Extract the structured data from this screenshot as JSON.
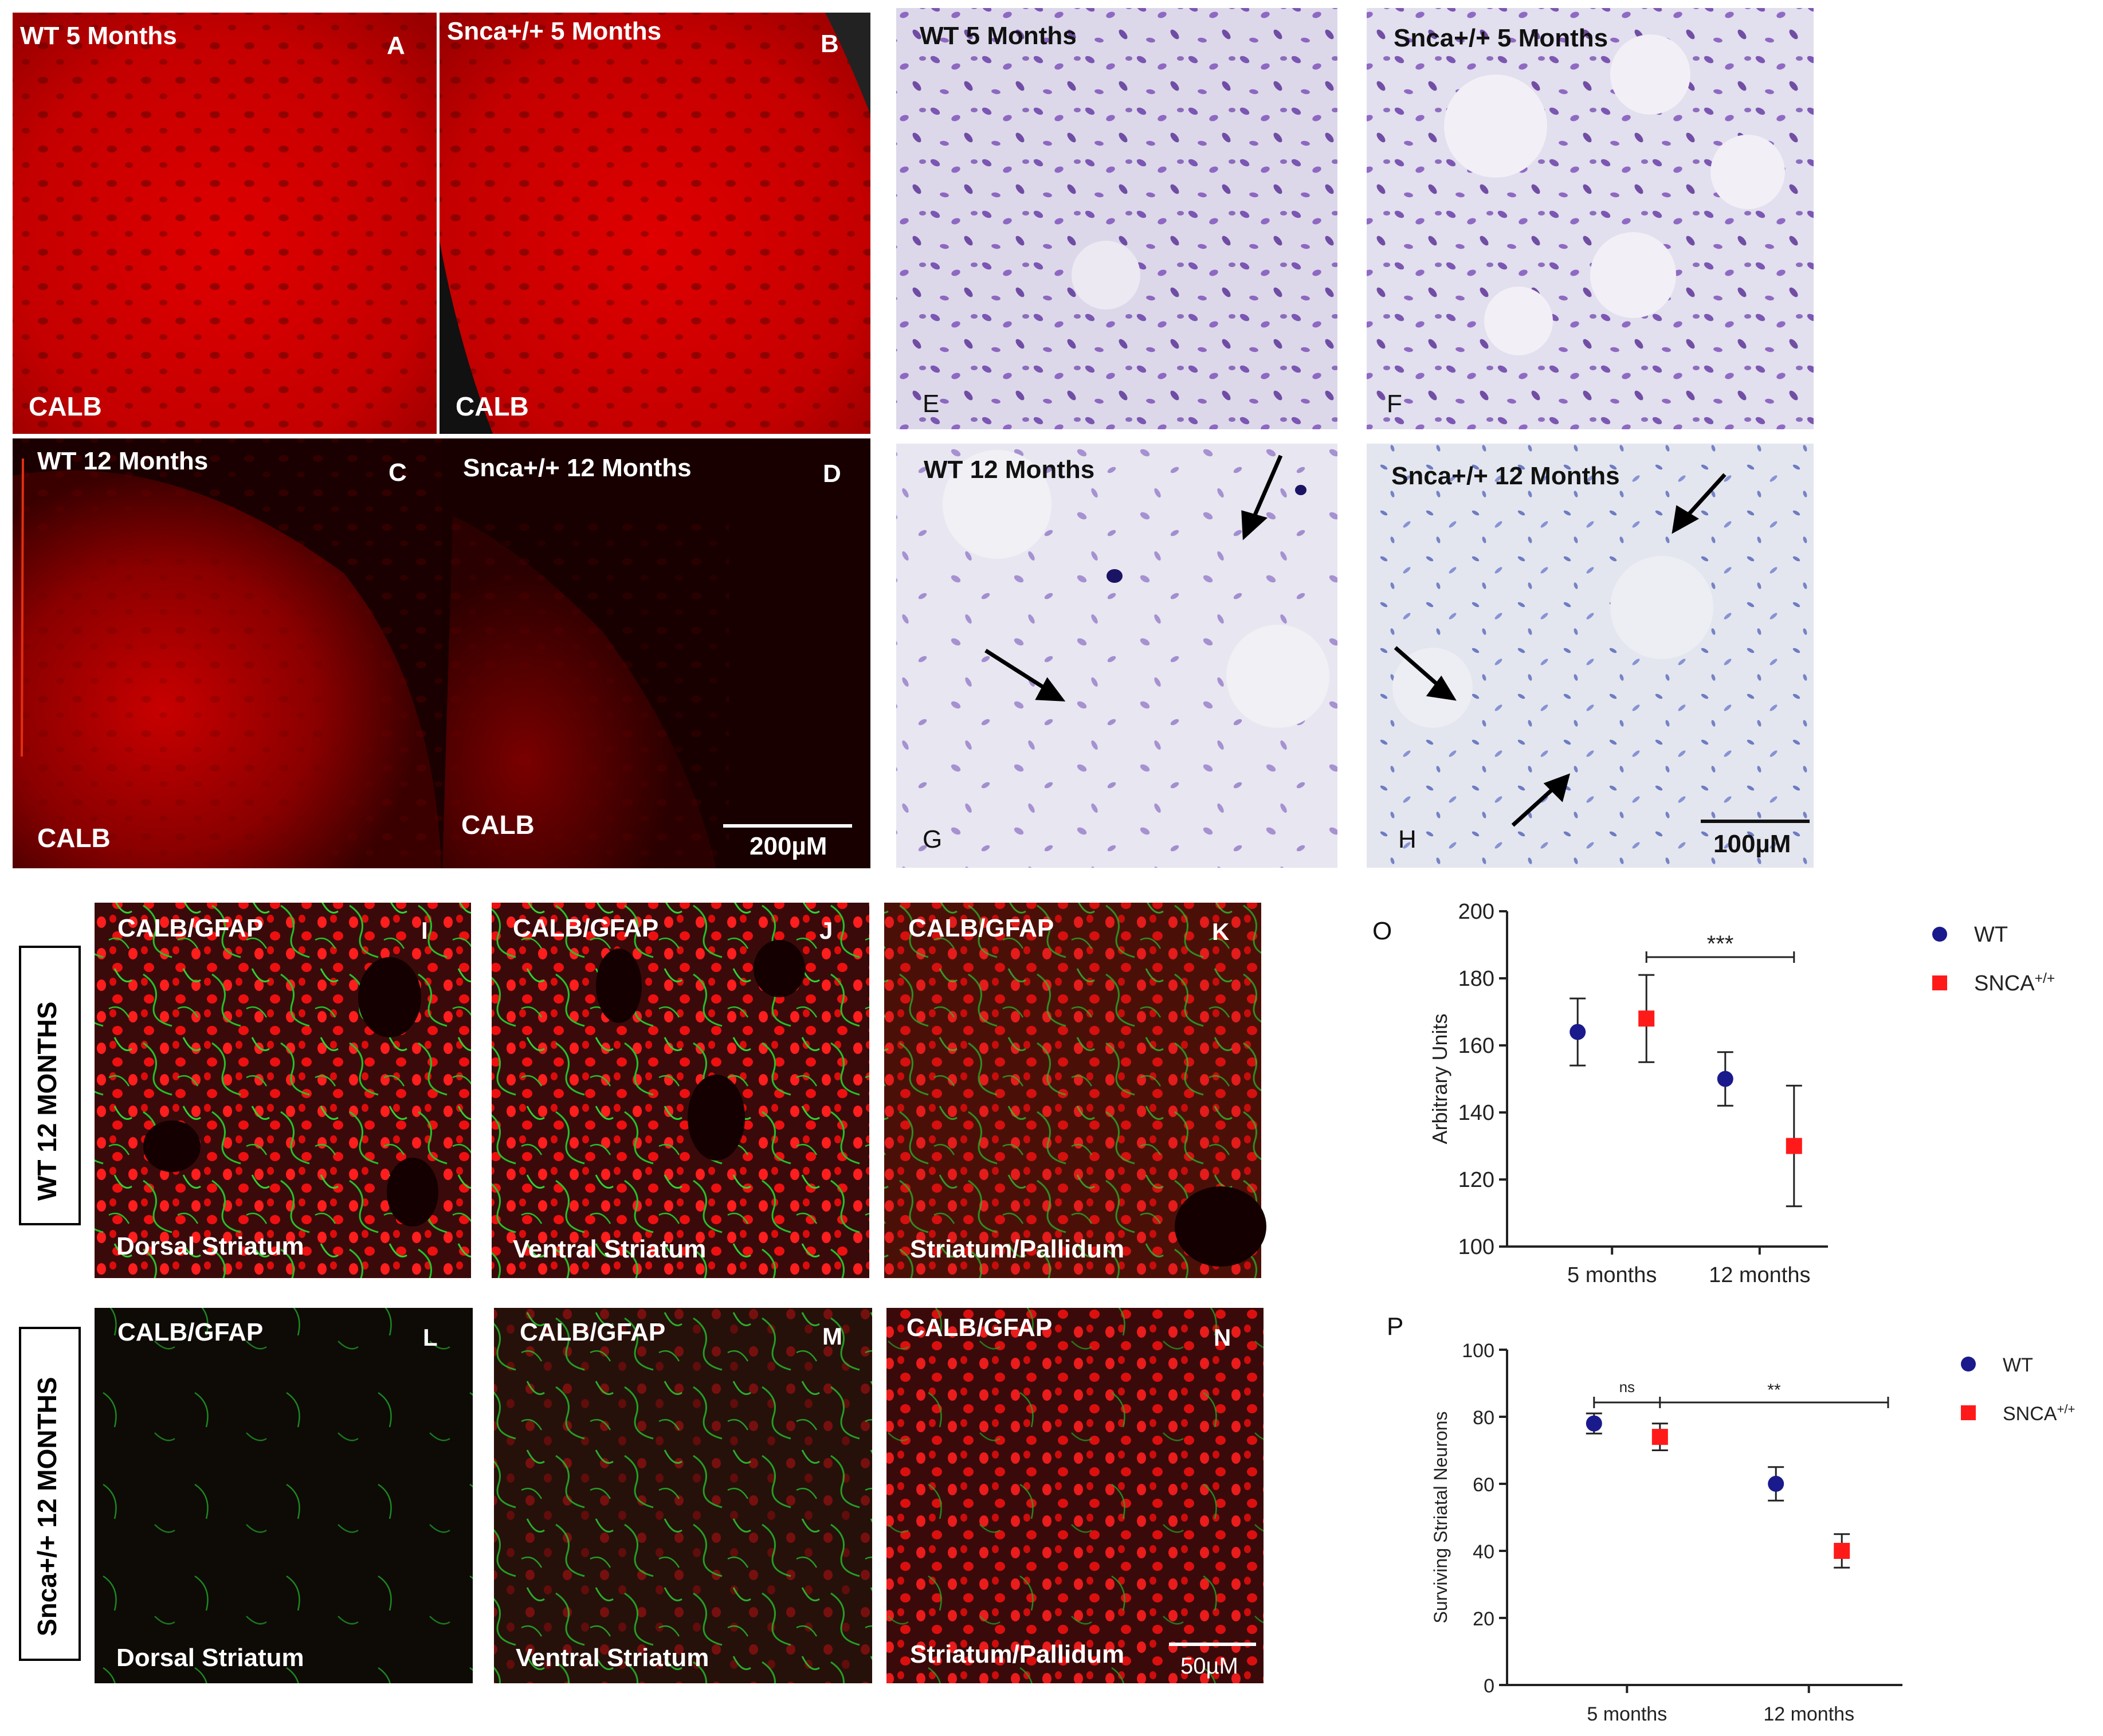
{
  "panels_fluor_top": {
    "A": {
      "title": "WT 5 Months",
      "letter": "A",
      "stain": "CALB"
    },
    "B": {
      "title": "Snca+/+ 5 Months",
      "letter": "B",
      "stain": "CALB"
    },
    "C": {
      "title": "WT 12 Months",
      "letter": "C",
      "stain": "CALB"
    },
    "D": {
      "title": "Snca+/+ 12 Months",
      "letter": "D",
      "stain": "CALB",
      "scale": "200µM"
    }
  },
  "panels_nissl": {
    "E": {
      "title": "WT 5 Months",
      "letter": "E"
    },
    "F": {
      "title": "Snca+/+ 5 Months",
      "letter": "F"
    },
    "G": {
      "title": "WT 12 Months",
      "letter": "G"
    },
    "H": {
      "title": "Snca+/+ 12 Months",
      "letter": "H",
      "scale": "100µM"
    }
  },
  "row_labels": {
    "wt": "WT 12 MONTHS",
    "snca": "Snca+/+ 12 MONTHS"
  },
  "panels_gfap": {
    "I": {
      "stain": "CALB/GFAP",
      "letter": "I",
      "region": "Dorsal  Striatum"
    },
    "J": {
      "stain": "CALB/GFAP",
      "letter": "J",
      "region": "Ventral Striatum"
    },
    "K": {
      "stain": "CALB/GFAP",
      "letter": "K",
      "region": "Striatum/Pallidum"
    },
    "L": {
      "stain": "CALB/GFAP",
      "letter": "L",
      "region": "Dorsal  Striatum"
    },
    "M": {
      "stain": "CALB/GFAP",
      "letter": "M",
      "region": "Ventral Striatum"
    },
    "N": {
      "stain": "CALB/GFAP",
      "letter": "N",
      "region": "Striatum/Pallidum",
      "scale": "50µM"
    }
  },
  "colors": {
    "wt": "#1a1a8c",
    "snca": "#ff1a1a",
    "calb_red": "#d40000",
    "gfap_green": "#22c22a",
    "nissl_bg": "#e6e3ef",
    "nissl_cell": "#6a3fa8"
  },
  "chart_data": [
    {
      "panel": "O",
      "type": "scatter",
      "categories": [
        "5 months",
        "12 months"
      ],
      "ylabel": "Arbitrary Units",
      "ylim": [
        100,
        200
      ],
      "yticks": [
        100,
        120,
        140,
        160,
        180,
        200
      ],
      "legend_position": "top-right",
      "series": [
        {
          "name": "WT",
          "values": [
            164,
            150
          ],
          "errors": [
            10,
            8
          ]
        },
        {
          "name": "SNCA+/+",
          "values": [
            168,
            130
          ],
          "errors": [
            13,
            18
          ]
        }
      ],
      "annotations": [
        {
          "text": "***",
          "from": "5 months",
          "to": "12 months"
        }
      ]
    },
    {
      "panel": "P",
      "type": "scatter",
      "categories": [
        "5 months",
        "12 months"
      ],
      "ylabel": "Surviving Striatal Neurons",
      "ylim": [
        0,
        100
      ],
      "yticks": [
        0,
        20,
        40,
        60,
        80,
        100
      ],
      "legend_position": "top-right",
      "series": [
        {
          "name": "WT",
          "values": [
            78,
            60
          ],
          "errors": [
            3,
            5
          ]
        },
        {
          "name": "SNCA+/+",
          "values": [
            74,
            40
          ],
          "errors": [
            4,
            5
          ]
        }
      ],
      "annotations": [
        {
          "text": "ns",
          "from": "5 months",
          "to": "5 months"
        },
        {
          "text": "**",
          "from": "5 months",
          "to": "12 months"
        }
      ]
    }
  ]
}
